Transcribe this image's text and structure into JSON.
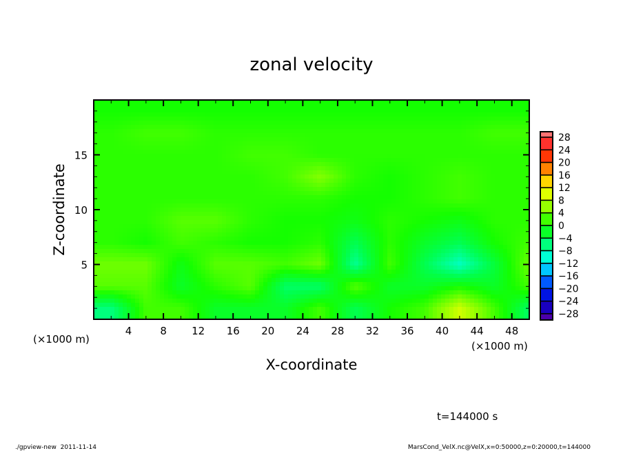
{
  "chart_data": {
    "type": "heatmap",
    "title": "zonal velocity",
    "xlabel": "X-coordinate",
    "ylabel": "Z-coordinate",
    "x_unit_label": "(×1000 m)",
    "x_unit_label_right": "(×1000 m)",
    "xlim": [
      0,
      50
    ],
    "ylim": [
      0,
      20
    ],
    "xticks": [
      4,
      8,
      12,
      16,
      20,
      24,
      28,
      32,
      36,
      40,
      44,
      48
    ],
    "yticks": [
      5,
      10,
      15
    ],
    "grid_x": [
      2,
      6,
      10,
      14,
      18,
      22,
      26,
      30,
      34,
      38,
      42,
      46,
      50
    ],
    "grid_z": [
      1,
      3,
      5,
      7,
      9,
      11,
      13,
      15,
      17,
      19
    ],
    "values": [
      [
        -6,
        2,
        2,
        -2,
        -2,
        -2,
        2,
        -4,
        0,
        2,
        9,
        2,
        -5
      ],
      [
        3,
        3,
        -2,
        1,
        3,
        -5,
        -5,
        3,
        -2,
        -2,
        0,
        -2,
        2
      ],
      [
        4,
        4,
        -1,
        3,
        3,
        2,
        4,
        -7,
        2,
        -4,
        -9,
        -3,
        4
      ],
      [
        1,
        0,
        2,
        1,
        0,
        0,
        1,
        -4,
        1,
        -2,
        -4,
        0,
        2
      ],
      [
        1,
        1,
        3,
        3,
        1,
        0,
        0,
        -1,
        1,
        0,
        -1,
        1,
        1
      ],
      [
        1,
        1,
        1,
        1,
        1,
        1,
        1,
        0,
        0,
        1,
        2,
        1,
        1
      ],
      [
        1,
        1,
        1,
        1,
        1,
        2,
        5,
        1,
        0,
        1,
        2,
        1,
        1
      ],
      [
        1,
        1,
        1,
        1,
        2,
        2,
        1,
        1,
        1,
        1,
        1,
        1,
        1
      ],
      [
        1,
        2,
        2,
        1,
        1,
        1,
        1,
        1,
        1,
        1,
        1,
        2,
        2
      ],
      [
        0,
        0,
        0,
        0,
        0,
        0,
        0,
        0,
        0,
        0,
        0,
        0,
        0
      ]
    ],
    "colorbar": {
      "levels": [
        28,
        24,
        20,
        16,
        12,
        8,
        4,
        0,
        -4,
        -8,
        -12,
        -16,
        -20,
        -24,
        -28
      ],
      "labels": [
        "28",
        "24",
        "20",
        "16",
        "12",
        "8",
        "4",
        "0",
        "−4",
        "−8",
        "−12",
        "−16",
        "−20",
        "−24",
        "−28"
      ]
    },
    "annotation": "t=144000 s"
  },
  "footer": {
    "left": "./gpview-new  2011-11-14",
    "right": "MarsCond_VelX.nc@VelX,x=0:50000,z=0:20000,t=144000"
  }
}
